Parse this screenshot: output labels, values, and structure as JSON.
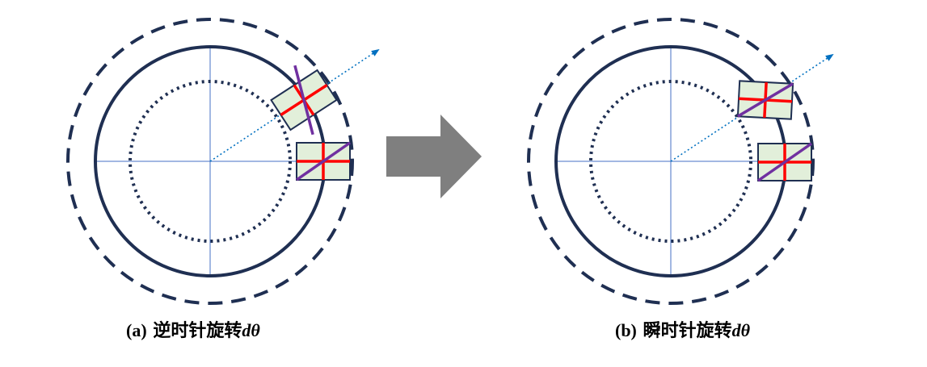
{
  "panels": [
    {
      "id": "a",
      "caption_label": "(a)",
      "caption_text": "逆时针旋转",
      "caption_math": "dθ"
    },
    {
      "id": "b",
      "caption_label": "(b)",
      "caption_text": "瞬时针旋转",
      "caption_math": "dθ"
    }
  ],
  "colors": {
    "circle": "#1f2f52",
    "axis": "#4472c4",
    "arrow_transition": "#7f7f7f",
    "element_fill": "#e2efda",
    "element_edge": "#1f2f52",
    "cross_lines": "#ff0000",
    "diagonal_line": "#7030a0",
    "radial_arrow": "#0070c0"
  }
}
